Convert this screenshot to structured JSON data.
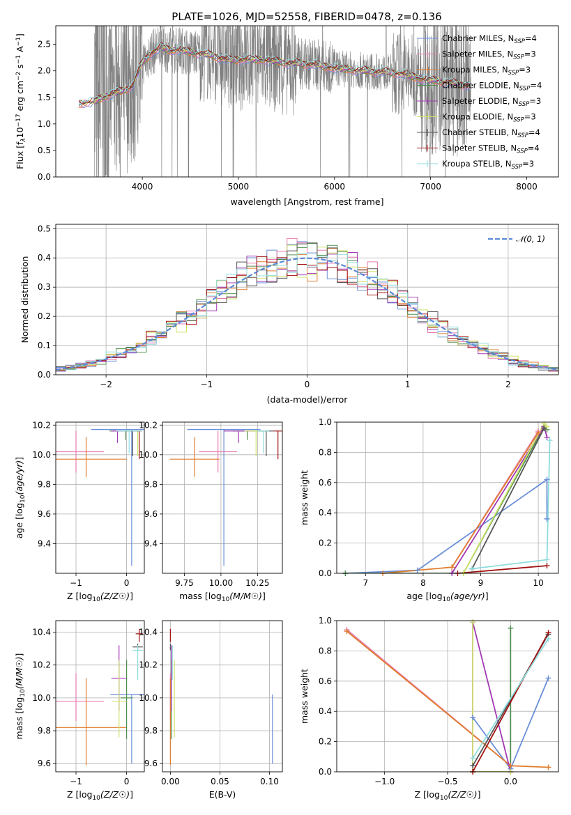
{
  "title": "PLATE=1026, MJD=52558, FIBERID=0478, z=0.136",
  "colors": {
    "Chabrier MILES": "#6a8fd9",
    "Salpeter MILES": "#e87ab0",
    "Kroupa MILES": "#e07d2e",
    "Chabrier ELODIE": "#4f8f4f",
    "Salpeter ELODIE": "#a238b3",
    "Kroupa ELODIE": "#cfe36a",
    "Chabrier STELIB": "#555555",
    "Salpeter STELIB": "#a01010",
    "Kroupa STELIB": "#8fdcdc",
    "data": "#808080"
  },
  "chart_data": [
    {
      "id": "spectrum",
      "type": "line",
      "xlabel": "wavelength [Angstrom, rest frame]",
      "ylabel": "Flux [f_λ10^-17 erg cm^-2 s^-1 A^-1]",
      "xlim": [
        3100,
        8330
      ],
      "ylim": [
        0,
        2.85
      ],
      "xticks": [
        4000,
        5000,
        6000,
        7000,
        8000
      ],
      "yticks": [
        0.0,
        0.5,
        1.0,
        1.5,
        2.0,
        2.5
      ],
      "grid": false,
      "legend_position": "top-right",
      "legend": [
        {
          "label": "Chabrier MILES, N",
          "sub": "SSP",
          "tail": "=4"
        },
        {
          "label": "Salpeter MILES, N",
          "sub": "SSP",
          "tail": "=3"
        },
        {
          "label": "Kroupa MILES, N",
          "sub": "SSP",
          "tail": "=3"
        },
        {
          "label": "Chabrier ELODIE, N",
          "sub": "SSP",
          "tail": "=4"
        },
        {
          "label": "Salpeter ELODIE, N",
          "sub": "SSP",
          "tail": "=3"
        },
        {
          "label": "Kroupa ELODIE, N",
          "sub": "SSP",
          "tail": "=3"
        },
        {
          "label": "Chabrier STELIB, N",
          "sub": "SSP",
          "tail": "=4"
        },
        {
          "label": "Salpeter STELIB, N",
          "sub": "SSP",
          "tail": "=4"
        },
        {
          "label": "Kroupa STELIB, N",
          "sub": "SSP",
          "tail": "=3"
        }
      ],
      "continuum": [
        [
          3340,
          1.38
        ],
        [
          3500,
          1.42
        ],
        [
          3600,
          1.5
        ],
        [
          3700,
          1.58
        ],
        [
          3800,
          1.62
        ],
        [
          3900,
          1.72
        ],
        [
          3950,
          1.95
        ],
        [
          4000,
          2.15
        ],
        [
          4100,
          2.35
        ],
        [
          4200,
          2.45
        ],
        [
          4300,
          2.38
        ],
        [
          4400,
          2.4
        ],
        [
          4500,
          2.35
        ],
        [
          4700,
          2.3
        ],
        [
          4900,
          2.2
        ],
        [
          5100,
          2.22
        ],
        [
          5300,
          2.2
        ],
        [
          5500,
          2.15
        ],
        [
          5800,
          2.12
        ],
        [
          6000,
          2.05
        ],
        [
          6300,
          2.0
        ],
        [
          6500,
          1.98
        ],
        [
          6700,
          1.95
        ],
        [
          6900,
          1.85
        ],
        [
          7100,
          1.8
        ],
        [
          7300,
          1.75
        ],
        [
          7410,
          1.72
        ]
      ],
      "data_range": [
        3500,
        7420
      ]
    },
    {
      "id": "residuals",
      "type": "bar",
      "xlabel": "(data-model)/error",
      "ylabel": "Normed distribution",
      "xlim": [
        -2.5,
        2.5
      ],
      "ylim": [
        0,
        0.515
      ],
      "xticks": [
        -2,
        -1,
        0,
        1,
        2
      ],
      "yticks": [
        0.0,
        0.1,
        0.2,
        0.3,
        0.4,
        0.5
      ],
      "grid": true,
      "legend_position": "top-right",
      "legend": "𝒩(0, 1)",
      "bin_width": 0.1
    },
    {
      "id": "age-vs-Z",
      "type": "scatter",
      "xlabel": "Z [log10(Z/Z☉)]",
      "ylabel": "age  [log10(age/yr)]",
      "xlim": [
        -1.4,
        0.35
      ],
      "ylim": [
        9.2,
        10.22
      ],
      "xticks": [
        -1,
        0
      ],
      "yticks": [
        9.4,
        9.6,
        9.8,
        10.0,
        10.2
      ],
      "grid": true,
      "points": [
        {
          "series": "Chabrier MILES",
          "x": 0.1,
          "y": 10.17,
          "xerr": 0.8,
          "yerr": [
            0.92,
            0
          ]
        },
        {
          "series": "Salpeter MILES",
          "x": -1.0,
          "y": 10.02,
          "xerr": 0.55,
          "yerr": [
            0.14,
            0.14
          ]
        },
        {
          "series": "Kroupa MILES",
          "x": -0.8,
          "y": 9.97,
          "xerr": 0.8,
          "yerr": [
            0.12,
            0.15
          ]
        },
        {
          "series": "Chabrier ELODIE",
          "x": -0.02,
          "y": 10.16,
          "xerr": 0.32,
          "yerr": [
            0.06,
            0
          ]
        },
        {
          "series": "Salpeter ELODIE",
          "x": -0.18,
          "y": 10.16,
          "xerr": 0.12,
          "yerr": [
            0.08,
            0
          ]
        },
        {
          "series": "Kroupa ELODIE",
          "x": 0.22,
          "y": 10.16,
          "xerr": 0.08,
          "yerr": [
            0.17,
            0
          ]
        },
        {
          "series": "Chabrier STELIB",
          "x": 0.12,
          "y": 10.16,
          "xerr": 0.12,
          "yerr": [
            0.17,
            0
          ]
        },
        {
          "series": "Salpeter STELIB",
          "x": 0.25,
          "y": 10.16,
          "xerr": 0.05,
          "yerr": [
            0.19,
            0
          ]
        },
        {
          "series": "Kroupa STELIB",
          "x": 0.05,
          "y": 10.16,
          "xerr": 0.25,
          "yerr": [
            0.15,
            0
          ]
        }
      ]
    },
    {
      "id": "age-vs-mass",
      "type": "scatter",
      "xlabel": "mass [log10(M/M☉)]",
      "ylabel": "",
      "xlim": [
        9.6,
        10.42
      ],
      "ylim": [
        9.2,
        10.22
      ],
      "xticks": [
        9.75,
        10.0,
        10.25
      ],
      "xticklabels": [
        "9.75",
        "10.00",
        "10.25"
      ],
      "yticks": [
        9.4,
        9.6,
        9.8,
        10.0,
        10.2
      ],
      "grid": true,
      "points": [
        {
          "series": "Chabrier MILES",
          "x": 10.02,
          "y": 10.17,
          "xerr": 0.25,
          "yerr": [
            0.92,
            0
          ]
        },
        {
          "series": "Salpeter MILES",
          "x": 9.98,
          "y": 10.02,
          "xerr": 0.13,
          "yerr": [
            0.14,
            0.14
          ]
        },
        {
          "series": "Kroupa MILES",
          "x": 9.82,
          "y": 9.97,
          "xerr": 0.17,
          "yerr": [
            0.12,
            0.15
          ]
        },
        {
          "series": "Chabrier ELODIE",
          "x": 10.18,
          "y": 10.16,
          "xerr": 0.1,
          "yerr": [
            0.06,
            0
          ]
        },
        {
          "series": "Salpeter ELODIE",
          "x": 10.12,
          "y": 10.16,
          "xerr": 0.1,
          "yerr": [
            0.08,
            0
          ]
        },
        {
          "series": "Kroupa ELODIE",
          "x": 10.24,
          "y": 10.16,
          "xerr": 0.08,
          "yerr": [
            0.17,
            0
          ]
        },
        {
          "series": "Chabrier STELIB",
          "x": 10.31,
          "y": 10.16,
          "xerr": 0.05,
          "yerr": [
            0.17,
            0
          ]
        },
        {
          "series": "Salpeter STELIB",
          "x": 10.39,
          "y": 10.16,
          "xerr": 0.03,
          "yerr": [
            0.19,
            0
          ]
        },
        {
          "series": "Kroupa STELIB",
          "x": 10.29,
          "y": 10.16,
          "xerr": 0.04,
          "yerr": [
            0.15,
            0
          ]
        }
      ]
    },
    {
      "id": "weight-vs-age",
      "type": "line",
      "xlabel": "age  [log10(age/yr)]",
      "ylabel": "mass weight",
      "xlim": [
        6.5,
        10.35
      ],
      "ylim": [
        0,
        1.0
      ],
      "xticks": [
        7,
        8,
        9,
        10
      ],
      "yticks": [
        0.0,
        0.2,
        0.4,
        0.6,
        0.8,
        1.0
      ],
      "grid": true,
      "series": [
        {
          "name": "Chabrier MILES",
          "x": [
            6.65,
            7.9,
            10.15,
            10.15
          ],
          "y": [
            0.0,
            0.02,
            0.62,
            0.36
          ]
        },
        {
          "name": "Salpeter MILES",
          "x": [
            8.5,
            10.0
          ],
          "y": [
            0.04,
            0.94
          ]
        },
        {
          "name": "Kroupa MILES",
          "x": [
            7.3,
            8.5,
            10.0
          ],
          "y": [
            0.0,
            0.04,
            0.93
          ]
        },
        {
          "name": "Chabrier ELODIE",
          "x": [
            6.65,
            8.7,
            10.1,
            10.15
          ],
          "y": [
            0.0,
            0.0,
            0.97,
            0.95
          ]
        },
        {
          "name": "Salpeter ELODIE",
          "x": [
            8.5,
            10.1,
            10.15
          ],
          "y": [
            0.0,
            0.97,
            0.9
          ]
        },
        {
          "name": "Kroupa ELODIE",
          "x": [
            8.7,
            10.1,
            10.15
          ],
          "y": [
            0.0,
            0.99,
            0.97
          ]
        },
        {
          "name": "Chabrier STELIB",
          "x": [
            8.85,
            10.1
          ],
          "y": [
            0.03,
            0.96
          ]
        },
        {
          "name": "Salpeter STELIB",
          "x": [
            8.6,
            10.15
          ],
          "y": [
            0.0,
            0.05
          ]
        },
        {
          "name": "Kroupa STELIB",
          "x": [
            8.85,
            10.15,
            10.2
          ],
          "y": [
            0.03,
            0.09,
            0.88
          ]
        }
      ]
    },
    {
      "id": "mass-vs-Z",
      "type": "scatter",
      "xlabel": "Z [log10(Z/Z☉)]",
      "ylabel": "mass [log10(M/M☉)]",
      "xlim": [
        -1.4,
        0.35
      ],
      "ylim": [
        9.55,
        10.47
      ],
      "xticks": [
        -1,
        0
      ],
      "yticks": [
        9.6,
        9.8,
        10.0,
        10.2,
        10.4
      ],
      "grid": true,
      "points": [
        {
          "series": "Chabrier MILES",
          "x": 0.1,
          "y": 10.02,
          "xerr": 0.42,
          "yerr": [
            0.42,
            0
          ]
        },
        {
          "series": "Salpeter MILES",
          "x": -1.0,
          "y": 9.98,
          "xerr": 0.55,
          "yerr": [
            0.12,
            0.17
          ]
        },
        {
          "series": "Kroupa MILES",
          "x": -0.8,
          "y": 9.82,
          "xerr": 0.8,
          "yerr": [
            0.23,
            0.3
          ]
        },
        {
          "series": "Chabrier ELODIE",
          "x": 0.0,
          "y": 10.0,
          "xerr": 0.12,
          "yerr": [
            0.25,
            0.23
          ]
        },
        {
          "series": "Salpeter ELODIE",
          "x": -0.15,
          "y": 10.12,
          "xerr": 0.15,
          "yerr": [
            0.2,
            0.2
          ]
        },
        {
          "series": "Kroupa ELODIE",
          "x": -0.15,
          "y": 9.98,
          "xerr": 0.15,
          "yerr": [
            0.22,
            0.25
          ]
        },
        {
          "series": "Chabrier STELIB",
          "x": 0.22,
          "y": 10.31,
          "xerr": 0.1,
          "yerr": [
            0.02,
            0.02
          ]
        },
        {
          "series": "Salpeter STELIB",
          "x": 0.25,
          "y": 10.39,
          "xerr": 0.07,
          "yerr": [
            0.05,
            0.03
          ]
        },
        {
          "series": "Kroupa STELIB",
          "x": 0.22,
          "y": 10.29,
          "xerr": 0.1,
          "yerr": [
            0.18,
            0.03
          ]
        }
      ]
    },
    {
      "id": "mass-vs-EBV",
      "type": "scatter",
      "xlabel": "E(B-V)",
      "ylabel": "",
      "xlim": [
        -0.008,
        0.113
      ],
      "ylim": [
        9.55,
        10.47
      ],
      "xticks": [
        0.0,
        0.05,
        0.1
      ],
      "xticklabels": [
        "0.00",
        "0.05",
        "0.10"
      ],
      "yticks": [
        9.6,
        9.8,
        10.0,
        10.2,
        10.4
      ],
      "grid": true,
      "points": [
        {
          "series": "Chabrier MILES",
          "x": 0.103,
          "y": 10.02,
          "xerr": 0,
          "yerr": [
            0.42,
            0.0
          ]
        },
        {
          "series": "Salpeter MILES",
          "x": 0.0,
          "y": 9.98,
          "xerr": 0,
          "yerr": [
            0.12,
            0.17
          ]
        },
        {
          "series": "Kroupa MILES",
          "x": 0.0,
          "y": 9.82,
          "xerr": 0,
          "yerr": [
            0.23,
            0.3
          ]
        },
        {
          "series": "Chabrier ELODIE",
          "x": 0.001,
          "y": 10.0,
          "xerr": 0,
          "yerr": [
            0.25,
            0.23
          ]
        },
        {
          "series": "Salpeter ELODIE",
          "x": 0.001,
          "y": 10.12,
          "xerr": 0,
          "yerr": [
            0.2,
            0.2
          ]
        },
        {
          "series": "Kroupa ELODIE",
          "x": 0.004,
          "y": 9.98,
          "xerr": 0,
          "yerr": [
            0.22,
            0.25
          ]
        },
        {
          "series": "Chabrier STELIB",
          "x": 0.0,
          "y": 10.31,
          "xerr": 0,
          "yerr": [
            0.02,
            0.02
          ]
        },
        {
          "series": "Salpeter STELIB",
          "x": 0.0,
          "y": 10.39,
          "xerr": 0,
          "yerr": [
            0.05,
            0.03
          ]
        },
        {
          "series": "Kroupa STELIB",
          "x": 0.002,
          "y": 10.29,
          "xerr": 0,
          "yerr": [
            0.18,
            0.03
          ]
        }
      ]
    },
    {
      "id": "weight-vs-Z",
      "type": "line",
      "xlabel": "Z [log10(Z/Z☉)]",
      "ylabel": "mass weight",
      "xlim": [
        -1.38,
        0.38
      ],
      "ylim": [
        0,
        1.0
      ],
      "xticks": [
        -1.0,
        -0.5,
        0.0
      ],
      "xticklabels": [
        "−1.0",
        "−0.5",
        "0.0"
      ],
      "yticks": [
        0.0,
        0.2,
        0.4,
        0.6,
        0.8,
        1.0
      ],
      "grid": true,
      "series": [
        {
          "name": "Chabrier MILES",
          "x": [
            -0.3,
            0.0,
            0.3
          ],
          "y": [
            0.36,
            0.02,
            0.62
          ]
        },
        {
          "name": "Salpeter MILES",
          "x": [
            -1.3,
            0.0
          ],
          "y": [
            0.94,
            0.04
          ]
        },
        {
          "name": "Kroupa MILES",
          "x": [
            -1.3,
            0.0,
            0.3
          ],
          "y": [
            0.93,
            0.04,
            0.03
          ]
        },
        {
          "name": "Chabrier ELODIE",
          "x": [
            0.0,
            0.0,
            -0.3
          ],
          "y": [
            0.95,
            0.0,
            0.0
          ]
        },
        {
          "name": "Salpeter ELODIE",
          "x": [
            -0.3,
            -0.3,
            0.0
          ],
          "y": [
            0.0,
            0.99,
            0.0
          ]
        },
        {
          "name": "Kroupa ELODIE",
          "x": [
            -0.3,
            -0.3,
            0.0
          ],
          "y": [
            0.99,
            0.0,
            0.0
          ]
        },
        {
          "name": "Chabrier STELIB",
          "x": [
            -0.3,
            0.3
          ],
          "y": [
            0.04,
            0.91
          ]
        },
        {
          "name": "Salpeter STELIB",
          "x": [
            -0.3,
            0.3
          ],
          "y": [
            0.0,
            0.92
          ]
        },
        {
          "name": "Kroupa STELIB",
          "x": [
            -0.3,
            0.3
          ],
          "y": [
            0.09,
            0.88
          ]
        }
      ]
    }
  ]
}
